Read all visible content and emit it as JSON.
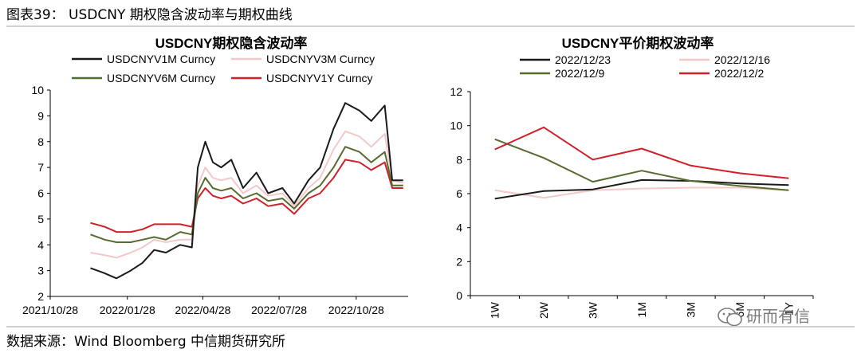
{
  "header": {
    "caption": "图表39： USDCNY 期权隐含波动率与期权曲线"
  },
  "footer": {
    "source": "数据来源：Wind  Bloomberg  中信期货研究所"
  },
  "watermark": {
    "text": "研而有信",
    "icon": "wechat-icon"
  },
  "colors": {
    "v1m": "#1a1a1a",
    "v3m": "#f4c8c8",
    "v6m": "#566b2f",
    "v1y": "#d0202a"
  },
  "chart_data": [
    {
      "type": "line",
      "title": "USDCNY期权隐含波动率",
      "xlabel": "",
      "ylabel": "",
      "ylim": [
        2,
        10
      ],
      "yticks": [
        "2",
        "3",
        "4",
        "5",
        "6",
        "7",
        "8",
        "9",
        "10"
      ],
      "xticks": [
        "2021/10/28",
        "2022/01/28",
        "2022/04/28",
        "2022/07/28",
        "2022/10/28"
      ],
      "legend_position": "top",
      "x": [
        "2021-12-15",
        "2022-01-01",
        "2022-01-15",
        "2022-02-01",
        "2022-02-15",
        "2022-03-01",
        "2022-03-15",
        "2022-04-01",
        "2022-04-15",
        "2022-04-22",
        "2022-05-01",
        "2022-05-10",
        "2022-05-20",
        "2022-06-01",
        "2022-06-15",
        "2022-07-01",
        "2022-07-15",
        "2022-08-01",
        "2022-08-15",
        "2022-09-01",
        "2022-09-15",
        "2022-10-01",
        "2022-10-15",
        "2022-11-01",
        "2022-11-15",
        "2022-12-01",
        "2022-12-10",
        "2022-12-23"
      ],
      "series": [
        {
          "name": "USDCNYV1M Curncy",
          "color": "#1a1a1a",
          "values": [
            3.1,
            2.9,
            2.7,
            3.0,
            3.3,
            3.8,
            3.7,
            4.0,
            3.9,
            7.0,
            8.0,
            7.2,
            7.0,
            7.3,
            6.2,
            6.8,
            6.0,
            6.2,
            5.6,
            6.5,
            7.0,
            8.5,
            9.5,
            9.2,
            8.8,
            9.4,
            6.5,
            6.5
          ]
        },
        {
          "name": "USDCNYV3M Curncy",
          "color": "#f4c8c8",
          "values": [
            3.7,
            3.6,
            3.5,
            3.7,
            3.9,
            4.2,
            4.1,
            4.2,
            4.2,
            6.3,
            7.0,
            6.6,
            6.5,
            6.6,
            6.0,
            6.3,
            5.9,
            6.0,
            5.5,
            6.2,
            6.6,
            7.7,
            8.4,
            8.2,
            7.8,
            8.3,
            6.5,
            6.4
          ]
        },
        {
          "name": "USDCNYV6M Curncy",
          "color": "#566b2f",
          "values": [
            4.4,
            4.2,
            4.1,
            4.1,
            4.2,
            4.3,
            4.2,
            4.5,
            4.4,
            6.0,
            6.6,
            6.2,
            6.1,
            6.2,
            5.8,
            6.0,
            5.7,
            5.8,
            5.4,
            6.0,
            6.3,
            7.0,
            7.8,
            7.6,
            7.2,
            7.6,
            6.3,
            6.3
          ]
        },
        {
          "name": "USDCNYV1Y Curncy",
          "color": "#d0202a",
          "values": [
            4.85,
            4.7,
            4.5,
            4.5,
            4.6,
            4.8,
            4.8,
            4.8,
            4.7,
            5.8,
            6.2,
            5.9,
            5.8,
            5.9,
            5.6,
            5.8,
            5.5,
            5.6,
            5.2,
            5.8,
            6.0,
            6.6,
            7.3,
            7.2,
            6.9,
            7.2,
            6.2,
            6.2
          ]
        }
      ]
    },
    {
      "type": "line",
      "title": "USDCNY平价期权波动率",
      "xlabel": "",
      "ylabel": "",
      "ylim": [
        0,
        12
      ],
      "yticks": [
        "0",
        "2",
        "4",
        "6",
        "8",
        "10",
        "12"
      ],
      "categories": [
        "1W",
        "2W",
        "3W",
        "1M",
        "3M",
        "6M",
        "1Y"
      ],
      "legend_position": "top",
      "series": [
        {
          "name": "2022/12/23",
          "color": "#1a1a1a",
          "values": [
            5.7,
            6.15,
            6.25,
            6.8,
            6.75,
            6.6,
            6.5
          ]
        },
        {
          "name": "2022/12/16",
          "color": "#f4c8c8",
          "values": [
            6.2,
            5.75,
            6.2,
            6.3,
            6.35,
            6.35,
            6.2
          ]
        },
        {
          "name": "2022/12/9",
          "color": "#566b2f",
          "values": [
            9.2,
            8.1,
            6.7,
            7.35,
            6.75,
            6.45,
            6.2
          ]
        },
        {
          "name": "2022/12/2",
          "color": "#d0202a",
          "values": [
            8.6,
            9.9,
            8.0,
            8.65,
            7.65,
            7.2,
            6.9
          ]
        }
      ]
    }
  ]
}
